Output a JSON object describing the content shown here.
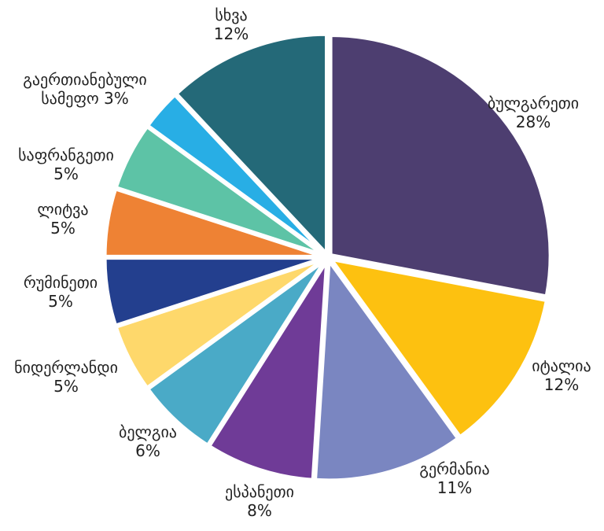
{
  "chart_data": {
    "type": "pie",
    "title": "",
    "start_angle_deg": 0,
    "direction": "clockwise",
    "slices": [
      {
        "label": "ბულგარეთი",
        "value": 28,
        "value_label": "28%",
        "color": "#4d3e70"
      },
      {
        "label": "იტალია",
        "value": 12,
        "value_label": "12%",
        "color": "#fdc110"
      },
      {
        "label": "გერმანია",
        "value": 11,
        "value_label": "11%",
        "color": "#7a86c1"
      },
      {
        "label": "ესპანეთი",
        "value": 8,
        "value_label": "8%",
        "color": "#6f3b97"
      },
      {
        "label": "ბელგია",
        "value": 6,
        "value_label": "6%",
        "color": "#4aaac7"
      },
      {
        "label": "ნიდერლანდი",
        "value": 5,
        "value_label": "5%",
        "color": "#fed86b"
      },
      {
        "label": "რუმინეთი",
        "value": 5,
        "value_label": "5%",
        "color": "#233f8e"
      },
      {
        "label": "ლიტვა",
        "value": 5,
        "value_label": "5%",
        "color": "#ee8234"
      },
      {
        "label": "საფრანგეთი",
        "value": 5,
        "value_label": "5%",
        "color": "#5dc3a6"
      },
      {
        "label": "გაერთიანებული სამეფო",
        "value": 3,
        "value_label": "3%",
        "color": "#28aee5"
      },
      {
        "label": "სხვა",
        "value": 12,
        "value_label": "12%",
        "color": "#246978"
      }
    ]
  }
}
